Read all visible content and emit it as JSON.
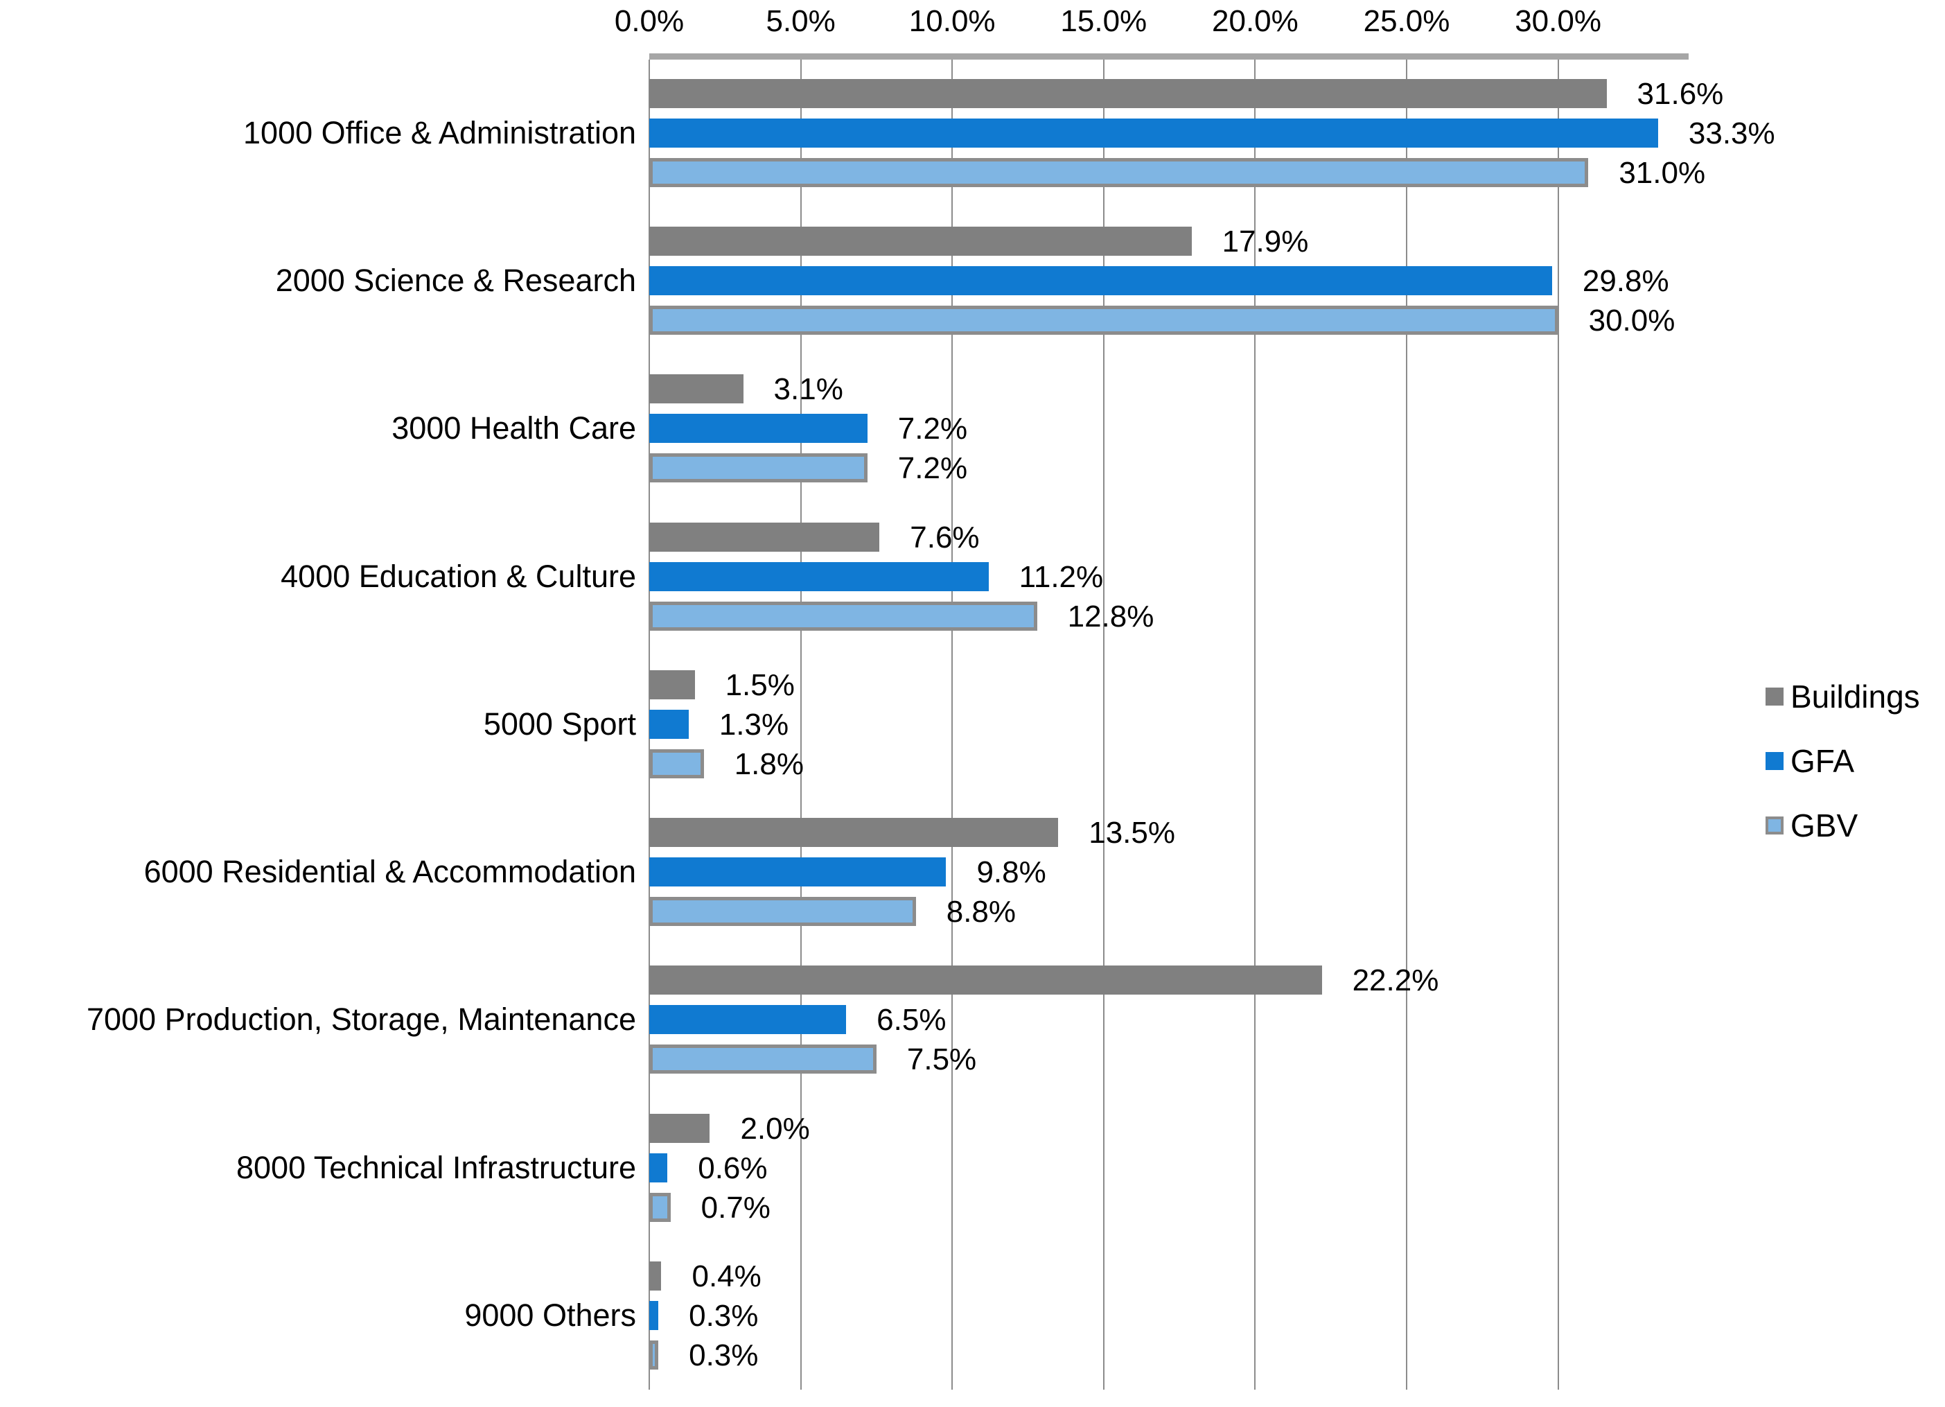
{
  "chart_data": {
    "type": "bar",
    "orientation": "horizontal",
    "title": "",
    "categories": [
      "1000 Office & Administration",
      "2000 Science & Research",
      "3000 Health Care",
      "4000 Education & Culture",
      "5000 Sport",
      "6000 Residential & Accommodation",
      "7000 Production, Storage, Maintenance",
      "8000 Technical Infrastructure",
      "9000 Others"
    ],
    "series": [
      {
        "name": "Buildings",
        "color": "#808080",
        "values": [
          31.6,
          17.9,
          3.1,
          7.6,
          1.5,
          13.5,
          22.2,
          2.0,
          0.4
        ],
        "data_labels": [
          "31.6%",
          "17.9%",
          "3.1%",
          "7.6%",
          "1.5%",
          "13.5%",
          "22.2%",
          "2.0%",
          "0.4%"
        ]
      },
      {
        "name": "GFA",
        "color": "#107AD1",
        "values": [
          33.3,
          29.8,
          7.2,
          11.2,
          1.3,
          9.8,
          6.5,
          0.6,
          0.3
        ],
        "data_labels": [
          "33.3%",
          "29.8%",
          "7.2%",
          "11.2%",
          "1.3%",
          "9.8%",
          "6.5%",
          "0.6%",
          "0.3%"
        ]
      },
      {
        "name": "GBV",
        "color": "#7FB5E3",
        "border_color": "#8C8C8C",
        "values": [
          31.0,
          30.0,
          7.2,
          12.8,
          1.8,
          8.8,
          7.5,
          0.7,
          0.3
        ],
        "data_labels": [
          "31.0%",
          "30.0%",
          "7.2%",
          "12.8%",
          "1.8%",
          "8.8%",
          "7.5%",
          "0.7%",
          "0.3%"
        ]
      }
    ],
    "x_axis": {
      "tick_labels": [
        "0.0%",
        "5.0%",
        "10.0%",
        "15.0%",
        "20.0%",
        "25.0%",
        "30.0%"
      ],
      "tick_values": [
        0,
        5,
        10,
        15,
        20,
        25,
        30
      ],
      "range": [
        0,
        34.3
      ]
    },
    "legend": {
      "position": "right",
      "entries": [
        "Buildings",
        "GFA",
        "GBV"
      ]
    },
    "grid": true,
    "colors": {
      "axis_line": "#A6A6A6",
      "gridline": "#8C8C8C",
      "text": "#000000",
      "background": "#FFFFFF"
    }
  }
}
